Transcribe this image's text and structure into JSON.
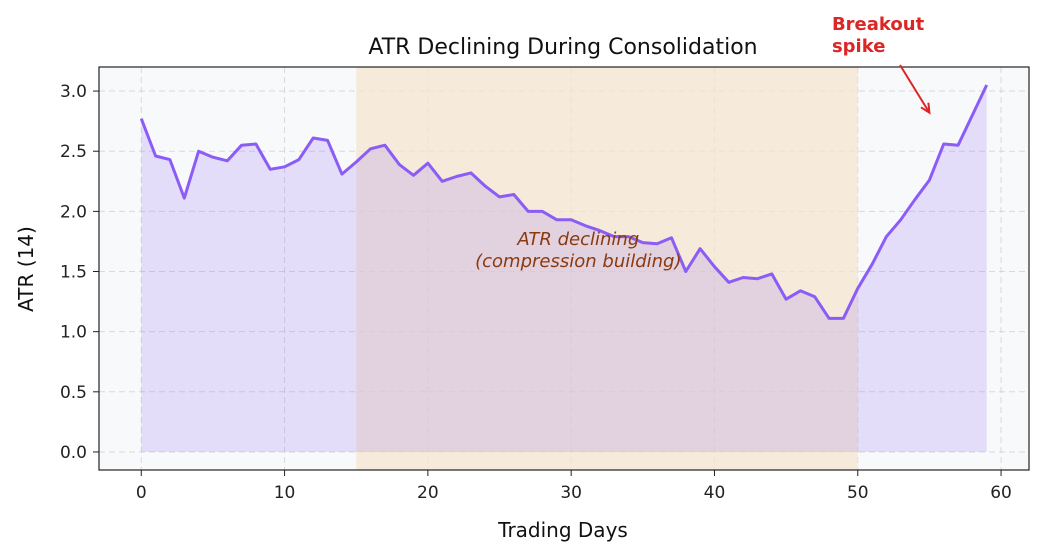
{
  "chart_data": {
    "type": "area",
    "title": "ATR Declining During Consolidation",
    "xlabel": "Trading Days",
    "ylabel": "ATR (14)",
    "xlim": [
      -2.95,
      61.95
    ],
    "ylim": [
      -0.15,
      3.2
    ],
    "xticks": [
      0,
      10,
      20,
      30,
      40,
      50,
      60
    ],
    "yticks": [
      "0.0",
      "0.5",
      "1.0",
      "1.5",
      "2.0",
      "2.5",
      "3.0"
    ],
    "grid": true,
    "shaded_region": {
      "x_start": 15,
      "x_end": 50,
      "color": "#f5e6cc"
    },
    "line_color": "#8b5cf6",
    "fill_color": "#ddd3fb",
    "x": [
      0,
      1,
      2,
      3,
      4,
      5,
      6,
      7,
      8,
      9,
      10,
      11,
      12,
      13,
      14,
      15,
      16,
      17,
      18,
      19,
      20,
      21,
      22,
      23,
      24,
      25,
      26,
      27,
      28,
      29,
      30,
      31,
      32,
      33,
      34,
      35,
      36,
      37,
      38,
      39,
      40,
      41,
      42,
      43,
      44,
      45,
      46,
      47,
      48,
      49,
      50,
      51,
      52,
      53,
      54,
      55,
      56,
      57,
      58,
      59
    ],
    "values": [
      2.77,
      2.46,
      2.43,
      2.11,
      2.5,
      2.45,
      2.42,
      2.55,
      2.56,
      2.35,
      2.37,
      2.43,
      2.61,
      2.59,
      2.31,
      2.41,
      2.52,
      2.55,
      2.39,
      2.3,
      2.4,
      2.25,
      2.29,
      2.32,
      2.21,
      2.12,
      2.14,
      2.0,
      2.0,
      1.93,
      1.93,
      1.88,
      1.84,
      1.79,
      1.79,
      1.74,
      1.73,
      1.78,
      1.5,
      1.69,
      1.54,
      1.41,
      1.45,
      1.44,
      1.48,
      1.27,
      1.34,
      1.29,
      1.11,
      1.11,
      1.36,
      1.56,
      1.79,
      1.93,
      2.1,
      2.26,
      2.56,
      2.55,
      2.8,
      3.05
    ],
    "annotations": [
      {
        "text_line1": "ATR declining",
        "text_line2": "(compression building)",
        "x": 30.5,
        "y": 1.72,
        "color": "#8b3a0f"
      },
      {
        "text_line1": "Breakout",
        "text_line2": "spike",
        "x": 48.2,
        "y": 3.3,
        "arrow_to_x": 55,
        "arrow_to_y": 2.82,
        "color": "#dc2626"
      }
    ]
  }
}
